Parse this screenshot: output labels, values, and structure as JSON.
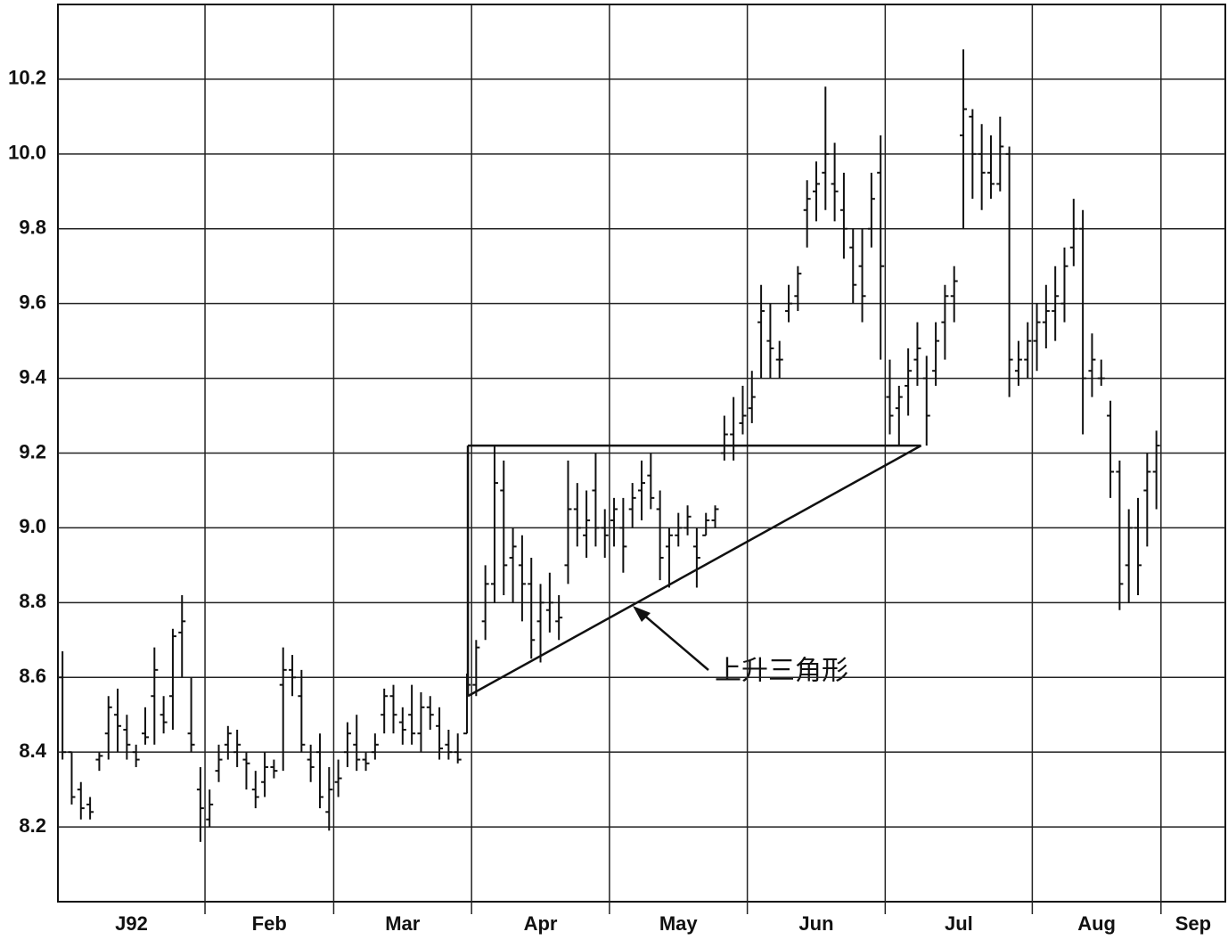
{
  "chart_data": {
    "type": "ohlc",
    "annotation": "上升三角形",
    "month_labels": [
      "J92",
      "Feb",
      "Mar",
      "Apr",
      "May",
      "Jun",
      "Jul",
      "Aug",
      "Sep"
    ],
    "xlim": [
      0,
      127
    ],
    "xticks": [
      16,
      30,
      45,
      60,
      75,
      90,
      106,
      120
    ],
    "ylim": [
      8.0,
      10.4
    ],
    "yticks": [
      8.2,
      8.4,
      8.6,
      8.8,
      {
        "value": 9,
        "label": "9.0"
      },
      9.2,
      9.4,
      9.6,
      9.8,
      {
        "value": 10,
        "label": "10.0"
      },
      10.2
    ],
    "grid": true,
    "color": "#111111",
    "open": [
      8.6,
      8.4,
      8.3,
      8.26,
      8.38,
      8.45,
      8.5,
      8.46,
      8.4,
      8.45,
      8.55,
      8.5,
      8.55,
      8.72,
      8.45,
      8.3,
      8.22,
      8.35,
      8.42,
      8.4,
      8.38,
      8.3,
      8.32,
      8.36,
      8.58,
      8.62,
      8.55,
      8.38,
      8.4,
      8.24,
      8.32,
      8.4,
      8.42,
      8.38,
      8.4,
      8.5,
      8.55,
      8.48,
      8.5,
      8.45,
      8.52,
      8.47,
      8.42,
      8.4,
      8.45,
      8.58,
      8.75,
      8.85,
      9.1,
      8.92,
      8.9,
      8.85,
      8.75,
      8.78,
      8.75,
      8.9,
      9.05,
      8.98,
      9.1,
      9.0,
      9.02,
      9.0,
      9.05,
      9.1,
      9.14,
      9.05,
      8.95,
      8.98,
      9.0,
      8.95,
      8.98,
      9.02,
      9.2,
      9.25,
      9.28,
      9.32,
      9.55,
      9.5,
      9.45,
      9.58,
      9.62,
      9.85,
      9.9,
      9.95,
      9.92,
      9.85,
      9.75,
      9.7,
      9.8,
      9.95,
      9.35,
      9.32,
      9.38,
      9.45,
      9.4,
      9.42,
      9.55,
      9.62,
      10.05,
      10.1,
      10.0,
      9.95,
      9.92,
      10.0,
      9.42,
      9.45,
      9.5,
      9.55,
      9.58,
      9.6,
      9.75,
      9.8,
      9.42,
      9.4,
      9.3,
      9.15,
      8.9,
      9.0,
      9.1,
      9.15
    ],
    "high": [
      8.67,
      8.4,
      8.32,
      8.28,
      8.4,
      8.55,
      8.57,
      8.5,
      8.42,
      8.52,
      8.68,
      8.55,
      8.73,
      8.82,
      8.6,
      8.36,
      8.3,
      8.42,
      8.47,
      8.46,
      8.4,
      8.35,
      8.4,
      8.38,
      8.68,
      8.66,
      8.62,
      8.42,
      8.45,
      8.36,
      8.38,
      8.48,
      8.5,
      8.4,
      8.45,
      8.57,
      8.58,
      8.52,
      8.58,
      8.56,
      8.55,
      8.52,
      8.46,
      8.45,
      8.61,
      8.7,
      8.9,
      9.22,
      9.18,
      9.0,
      8.98,
      8.92,
      8.85,
      8.88,
      8.82,
      9.18,
      9.12,
      9.1,
      9.2,
      9.05,
      9.08,
      9.08,
      9.12,
      9.18,
      9.2,
      9.1,
      9.0,
      9.04,
      9.06,
      9.0,
      9.04,
      9.06,
      9.3,
      9.35,
      9.38,
      9.42,
      9.65,
      9.6,
      9.5,
      9.65,
      9.7,
      9.93,
      9.98,
      10.18,
      10.03,
      9.95,
      9.8,
      9.8,
      9.95,
      10.05,
      9.45,
      9.38,
      9.48,
      9.55,
      9.46,
      9.55,
      9.65,
      9.7,
      10.28,
      10.12,
      10.08,
      10.05,
      10.1,
      10.02,
      9.5,
      9.55,
      9.6,
      9.65,
      9.7,
      9.75,
      9.88,
      9.85,
      9.52,
      9.45,
      9.34,
      9.18,
      9.05,
      9.08,
      9.2,
      9.26
    ],
    "low": [
      8.38,
      8.26,
      8.22,
      8.22,
      8.35,
      8.38,
      8.4,
      8.38,
      8.36,
      8.42,
      8.42,
      8.45,
      8.46,
      8.6,
      8.4,
      8.16,
      8.2,
      8.32,
      8.38,
      8.36,
      8.3,
      8.25,
      8.28,
      8.33,
      8.35,
      8.55,
      8.4,
      8.32,
      8.25,
      8.19,
      8.28,
      8.36,
      8.35,
      8.35,
      8.38,
      8.45,
      8.45,
      8.42,
      8.42,
      8.4,
      8.46,
      8.38,
      8.38,
      8.37,
      8.45,
      8.55,
      8.7,
      8.8,
      8.82,
      8.8,
      8.75,
      8.65,
      8.64,
      8.72,
      8.7,
      8.85,
      8.95,
      8.92,
      8.95,
      8.92,
      8.95,
      8.88,
      9.0,
      9.02,
      9.05,
      8.86,
      8.84,
      8.95,
      8.98,
      8.84,
      8.98,
      9.0,
      9.18,
      9.18,
      9.25,
      9.28,
      9.4,
      9.4,
      9.4,
      9.55,
      9.58,
      9.75,
      9.82,
      9.85,
      9.82,
      9.72,
      9.6,
      9.55,
      9.75,
      9.45,
      9.25,
      9.22,
      9.3,
      9.38,
      9.22,
      9.38,
      9.45,
      9.55,
      9.8,
      9.88,
      9.85,
      9.88,
      9.9,
      9.35,
      9.38,
      9.4,
      9.42,
      9.48,
      9.5,
      9.55,
      9.7,
      9.25,
      9.35,
      9.38,
      9.08,
      8.78,
      8.8,
      8.82,
      8.95,
      9.05
    ],
    "close": [
      8.4,
      8.28,
      8.25,
      8.24,
      8.39,
      8.52,
      8.47,
      8.42,
      8.38,
      8.44,
      8.62,
      8.48,
      8.71,
      8.75,
      8.42,
      8.25,
      8.26,
      8.38,
      8.45,
      8.42,
      8.37,
      8.28,
      8.36,
      8.35,
      8.62,
      8.6,
      8.42,
      8.36,
      8.28,
      8.3,
      8.33,
      8.45,
      8.38,
      8.37,
      8.42,
      8.55,
      8.5,
      8.46,
      8.45,
      8.52,
      8.5,
      8.41,
      8.4,
      8.38,
      8.58,
      8.68,
      8.85,
      9.12,
      8.9,
      8.95,
      8.85,
      8.7,
      8.8,
      8.8,
      8.76,
      9.05,
      9.0,
      9.02,
      9.0,
      8.98,
      9.05,
      8.95,
      9.08,
      9.12,
      9.08,
      8.92,
      8.98,
      9.0,
      9.03,
      8.92,
      9.02,
      9.05,
      9.25,
      9.22,
      9.3,
      9.35,
      9.58,
      9.48,
      9.45,
      9.6,
      9.68,
      9.88,
      9.92,
      10.0,
      9.9,
      9.8,
      9.65,
      9.62,
      9.88,
      9.7,
      9.3,
      9.35,
      9.42,
      9.48,
      9.3,
      9.5,
      9.62,
      9.66,
      10.12,
      10.0,
      9.95,
      9.92,
      10.02,
      9.45,
      9.45,
      9.5,
      9.55,
      9.58,
      9.62,
      9.7,
      9.8,
      9.4,
      9.45,
      9.4,
      9.15,
      8.85,
      9.0,
      8.9,
      9.15,
      9.22
    ],
    "triangle": {
      "x": [
        44.6,
        93.9
      ],
      "upper": [
        9.22,
        9.22
      ],
      "lower": [
        8.55,
        9.22
      ]
    }
  }
}
